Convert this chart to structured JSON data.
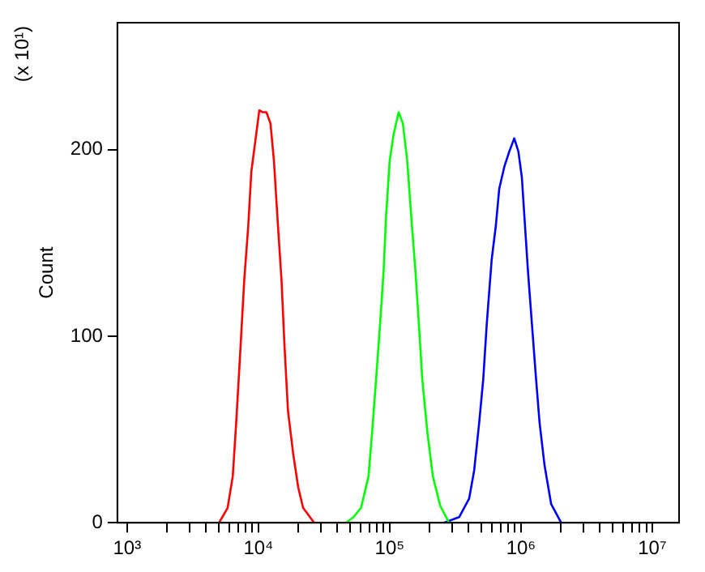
{
  "chart_data": {
    "type": "line",
    "ylabel": "Count",
    "annotations": [
      "(x 10¹)"
    ],
    "xlim": [
      843,
      16000000
    ],
    "ylim": [
      0,
      268
    ],
    "yticks": [
      0,
      100,
      200
    ],
    "xticks": [
      {
        "value": 1000,
        "label": "10³"
      },
      {
        "value": 2000,
        "label": null
      },
      {
        "value": 3000,
        "label": null
      },
      {
        "value": 4000,
        "label": null
      },
      {
        "value": 5000,
        "label": null
      },
      {
        "value": 6000,
        "label": null
      },
      {
        "value": 7000,
        "label": null
      },
      {
        "value": 8000,
        "label": null
      },
      {
        "value": 9000,
        "label": null
      },
      {
        "value": 10000,
        "label": "10⁴"
      },
      {
        "value": 20000,
        "label": null
      },
      {
        "value": 30000,
        "label": null
      },
      {
        "value": 40000,
        "label": null
      },
      {
        "value": 50000,
        "label": null
      },
      {
        "value": 60000,
        "label": null
      },
      {
        "value": 70000,
        "label": null
      },
      {
        "value": 80000,
        "label": null
      },
      {
        "value": 90000,
        "label": null
      },
      {
        "value": 100000,
        "label": "10⁵"
      },
      {
        "value": 200000,
        "label": null
      },
      {
        "value": 300000,
        "label": null
      },
      {
        "value": 400000,
        "label": null
      },
      {
        "value": 500000,
        "label": null
      },
      {
        "value": 600000,
        "label": null
      },
      {
        "value": 700000,
        "label": null
      },
      {
        "value": 800000,
        "label": null
      },
      {
        "value": 900000,
        "label": null
      },
      {
        "value": 1000000,
        "label": "10⁶"
      },
      {
        "value": 2000000,
        "label": null
      },
      {
        "value": 3000000,
        "label": null
      },
      {
        "value": 4000000,
        "label": null
      },
      {
        "value": 5000000,
        "label": null
      },
      {
        "value": 6000000,
        "label": null
      },
      {
        "value": 7000000,
        "label": null
      },
      {
        "value": 8000000,
        "label": null
      },
      {
        "value": 9000000,
        "label": null
      },
      {
        "value": 10000000,
        "label": "10⁷"
      }
    ],
    "log": "x",
    "grid": false,
    "legend": false,
    "marker": "none",
    "line_style": "solid",
    "series": [
      {
        "color": "#ff0000",
        "x": [
          5020,
          5830,
          6380,
          6780,
          7280,
          7800,
          8370,
          8830,
          9490,
          10160,
          10820,
          11510,
          12360,
          13130,
          14100,
          15000,
          15800,
          16800,
          18400,
          20100,
          21900,
          26600
        ],
        "values": [
          0,
          8,
          25,
          54,
          92,
          130,
          159,
          188,
          205,
          221,
          220,
          220,
          214,
          194,
          159,
          130,
          95,
          60,
          37,
          19,
          8,
          0
        ]
      },
      {
        "color": "#00ff00",
        "x": [
          46400,
          53000,
          60500,
          69000,
          73400,
          78800,
          84400,
          89900,
          93800,
          100000,
          107000,
          117000,
          126000,
          136000,
          146000,
          157000,
          167000,
          177000,
          194000,
          213000,
          243000,
          283000
        ],
        "values": [
          0,
          3,
          8,
          25,
          48,
          77,
          106,
          135,
          164,
          194,
          208,
          220,
          214,
          194,
          164,
          135,
          106,
          77,
          48,
          25,
          9,
          0
        ]
      },
      {
        "color": "#0000ff",
        "x": [
          259000,
          338000,
          403000,
          440000,
          481000,
          516000,
          548000,
          598000,
          643000,
          683000,
          748000,
          815000,
          889000,
          955000,
          1016000,
          1062000,
          1130000,
          1213000,
          1303000,
          1384000,
          1510000,
          1698000,
          2023000
        ],
        "values": [
          0,
          3,
          13,
          28,
          54,
          77,
          106,
          141,
          159,
          179,
          191,
          199,
          206,
          199,
          185,
          164,
          135,
          106,
          77,
          54,
          31,
          10,
          0
        ]
      }
    ]
  }
}
